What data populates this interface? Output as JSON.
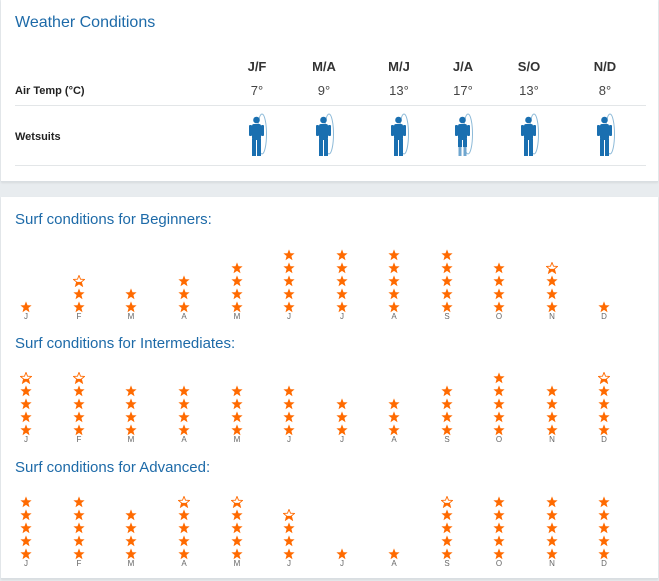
{
  "colors": {
    "accent": "#1d6aa8",
    "star": "#ff6a00",
    "wetsuit": "#1a6fb0"
  },
  "weather": {
    "title": "Weather Conditions",
    "air_temp_label": "Air Temp (°C)",
    "wetsuits_label": "Wetsuits",
    "periods": [
      "J/F",
      "M/A",
      "M/J",
      "J/A",
      "S/O",
      "N/D"
    ],
    "temps": [
      "7°",
      "9°",
      "13°",
      "17°",
      "13°",
      "8°"
    ],
    "wetsuit_icons": [
      "full-wetsuit-icon",
      "full-wetsuit-icon",
      "full-wetsuit-icon",
      "spring-wetsuit-icon",
      "full-wetsuit-icon",
      "full-wetsuit-icon"
    ]
  },
  "surf": {
    "months": [
      "J",
      "F",
      "M",
      "A",
      "M",
      "J",
      "J",
      "A",
      "S",
      "O",
      "N",
      "D"
    ],
    "max_stars": 5,
    "sections": [
      {
        "title": "Surf conditions for Beginners:",
        "ratings": [
          1,
          2.5,
          2,
          3,
          4,
          5,
          5,
          5,
          5,
          4,
          3.5,
          1
        ]
      },
      {
        "title": "Surf conditions for Intermediates:",
        "ratings": [
          4.5,
          4.5,
          4,
          4,
          4,
          4,
          3,
          3,
          4,
          5,
          4,
          4.5
        ]
      },
      {
        "title": "Surf conditions for Advanced:",
        "ratings": [
          5,
          5,
          4,
          4.5,
          4.5,
          3.5,
          1,
          1,
          4.5,
          5,
          5,
          5
        ]
      }
    ]
  }
}
